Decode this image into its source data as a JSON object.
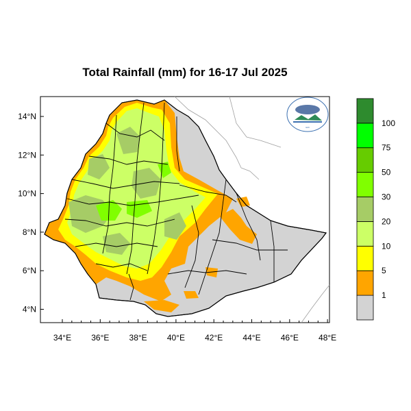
{
  "title": "Total Rainfall (mm) for 16-17 Jul 2025",
  "axes": {
    "x_ticks": [
      "34°E",
      "36°E",
      "38°E",
      "40°E",
      "42°E",
      "44°E",
      "46°E",
      "48°E"
    ],
    "y_ticks": [
      "14°N",
      "12°N",
      "10°N",
      "8°N",
      "6°N",
      "4°N"
    ]
  },
  "legend": {
    "labels": [
      "1",
      "5",
      "10",
      "20",
      "30",
      "50",
      "75",
      "100"
    ],
    "colors": [
      "#d3d3d3",
      "#ffa500",
      "#ffff00",
      "#ccff66",
      "#a6cc66",
      "#80ff00",
      "#66cc00",
      "#00ff00",
      "#2e8b2e"
    ]
  },
  "logo": {
    "description_icon": "ethiopian-meteorology-institute-logo"
  },
  "colors": {
    "no_rain": "#d3d3d3",
    "light": "#ffa500",
    "moderate": "#ffff00",
    "heavy_light_green": "#ccff66",
    "sage": "#a6cc66",
    "bright_green": "#80ff00"
  }
}
